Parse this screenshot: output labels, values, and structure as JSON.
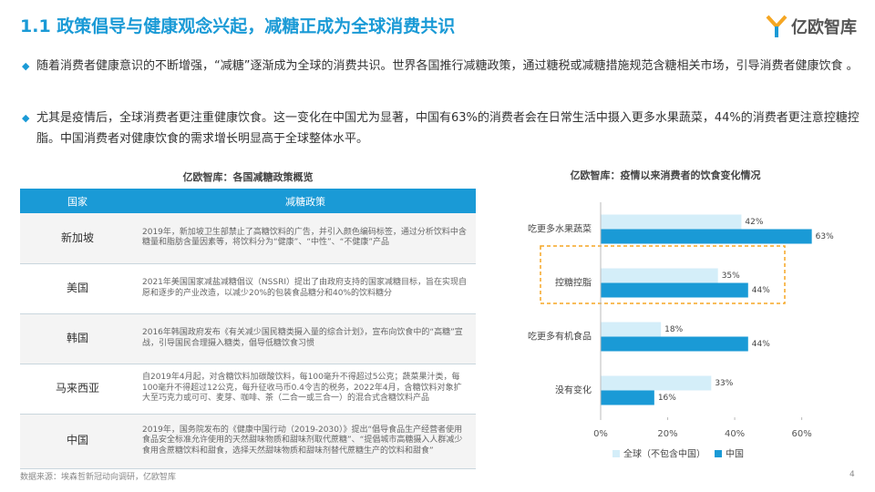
{
  "header": {
    "title": "1.1 政策倡导与健康观念兴起，减糖正成为全球消费共识",
    "logo": "亿欧智库"
  },
  "bullets": [
    "随着消费者健康意识的不断增强，“减糖”逐渐成为全球的消费共识。世界各国推行减糖政策，通过糖税或减糖措施规范含糖相关市场，引导消费者健康饮食 。",
    "尤其是疫情后，全球消费者更注重健康饮食。这一变化在中国尤为显著，中国有63%的消费者会在日常生活中摄入更多水果蔬菜，44%的消费者更注意控糖控脂。中国消费者对健康饮食的需求增长明显高于全球整体水平。"
  ],
  "table": {
    "title": "亿欧智库：各国减糖政策概览",
    "header": [
      "国家",
      "减糖政策"
    ],
    "rows": [
      [
        "新加坡",
        "2019年，新加坡卫生部禁止了高糖饮料的广告，并引入颜色编码标签，通过分析饮料中含糖量和脂肪含量因素等，将饮料分为“健康”、“中性”、“不健康”产品"
      ],
      [
        "美国",
        "2021年美国国家减盐减糖倡议（NSSRI）提出了由政府支持的国家减糖目标，旨在实现自愿和逐步的产业改造，以减少20%的包装食品糖分和40%的饮料糖分"
      ],
      [
        "韩国",
        "2016年韩国政府发布《有关减少国民糖类摄入量的综合计划》，宣布向饮食中的“高糖”宣战，引导国民合理摄入糖类，倡导低糖饮食习惯"
      ],
      [
        "马来西亚",
        "自2019年4月起，对含糖饮料加碳酸饮料，每100毫升不得超过5公克；蔬菜果汁类，每100毫升不得超过12公克，每升征收马币0.4令吉的税务，2022年4月，含糖饮料对象扩大至巧克力或可可、麦芽、咖啡、茶（二合一或三合一）的混合式含糖饮料产品"
      ],
      [
        "中国",
        "2019年，国务院发布的《健康中国行动（2019-2030）》提出“倡导食品生产经营者使用食品安全标准允许使用的天然甜味物质和甜味剂取代蔗糖”、“提倡城市高糖摄入人群减少食用含蔗糖饮料和甜食，选择天然甜味物质和甜味剂替代蔗糖生产的饮料和甜食”"
      ]
    ]
  },
  "chart_data": {
    "type": "hbar",
    "title": "亿欧智库：疫情以来消费者的饮食变化情况",
    "categories": [
      "吃更多水果蔬菜",
      "控糖控脂",
      "吃更多有机食品",
      "没有变化"
    ],
    "series": [
      {
        "name": "全球（不包含中国）",
        "color": "#d4eef9",
        "values": [
          42,
          35,
          18,
          33
        ],
        "value_labels": [
          "42%",
          "35%",
          "18%",
          "33%"
        ]
      },
      {
        "name": "中国",
        "color": "#1a9ad6",
        "values": [
          63,
          44,
          44,
          16
        ],
        "value_labels": [
          "63%",
          "44%",
          "44%",
          "16%"
        ]
      }
    ],
    "xlim": [
      0,
      65
    ],
    "xticks": [
      {
        "value": 0,
        "label": "0%"
      },
      {
        "value": 20,
        "label": "20%"
      },
      {
        "value": 40,
        "label": "40%"
      },
      {
        "value": 60,
        "label": "60%"
      }
    ],
    "grid": false,
    "legend": "bottom"
  },
  "footer": {
    "source": "数据来源：埃森哲新冠动向调研，亿欧智库",
    "page": "4"
  }
}
